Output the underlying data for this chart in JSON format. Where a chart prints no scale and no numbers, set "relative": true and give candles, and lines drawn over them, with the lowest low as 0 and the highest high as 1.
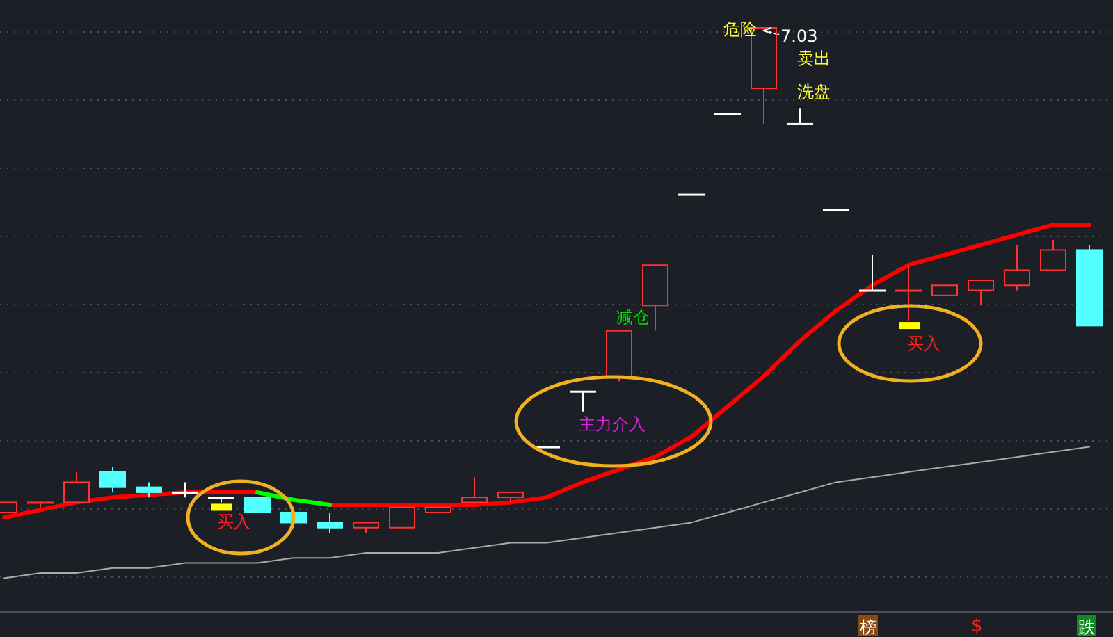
{
  "chart_data": {
    "type": "candlestick",
    "relative": true,
    "grid": true,
    "categories": [
      null,
      null,
      null,
      null,
      null,
      null,
      null,
      null,
      null,
      null,
      null,
      null,
      null,
      null,
      null,
      null,
      null,
      null,
      null,
      null,
      null,
      null,
      null,
      null,
      null,
      null,
      null,
      null,
      null,
      null,
      null
    ],
    "ohlc": [
      [
        0.04,
        0.06,
        0.04,
        0.06
      ],
      [
        0.06,
        0.06,
        0.05,
        0.06
      ],
      [
        0.06,
        0.12,
        0.06,
        0.1
      ],
      [
        0.12,
        0.13,
        0.08,
        0.09
      ],
      [
        0.09,
        0.1,
        0.07,
        0.08
      ],
      [
        0.08,
        0.1,
        0.07,
        0.08
      ],
      [
        0.07,
        0.07,
        0.06,
        0.07
      ],
      [
        0.07,
        0.07,
        0.04,
        0.04
      ],
      [
        0.04,
        0.05,
        0.01,
        0.02
      ],
      [
        0.02,
        0.04,
        0,
        0.01
      ],
      [
        0.01,
        0.02,
        0,
        0.02
      ],
      [
        0.01,
        0.05,
        0.01,
        0.05
      ],
      [
        0.04,
        0.05,
        0.04,
        0.05
      ],
      [
        0.06,
        0.11,
        0.06,
        0.07
      ],
      [
        0.07,
        0.08,
        0.06,
        0.08
      ],
      [
        0.17,
        0.17,
        0.17,
        0.17
      ],
      [
        0.28,
        0.28,
        0.24,
        0.28
      ],
      [
        0.31,
        0.4,
        0.3,
        0.4
      ],
      [
        0.45,
        0.53,
        0.4,
        0.53
      ],
      [
        0.67,
        0.67,
        0.67,
        0.67
      ],
      [
        0.83,
        0.83,
        0.83,
        0.83
      ],
      [
        0.88,
        1,
        0.81,
        1
      ],
      [
        0.81,
        0.84,
        0.81,
        0.81
      ],
      [
        0.64,
        0.64,
        0.64,
        0.64
      ],
      [
        0.48,
        0.55,
        0.48,
        0.48
      ],
      [
        0.48,
        0.53,
        0.42,
        0.48
      ],
      [
        0.47,
        0.49,
        0.47,
        0.49
      ],
      [
        0.48,
        0.5,
        0.45,
        0.5
      ],
      [
        0.49,
        0.57,
        0.48,
        0.52
      ],
      [
        0.52,
        0.58,
        0.52,
        0.56
      ],
      [
        0.56,
        0.57,
        0.41,
        0.41
      ]
    ],
    "colors": [
      "#ff3232",
      "#ff3232",
      "#ff3232",
      "#54ffff",
      "#54ffff",
      "#ffffff",
      "#ffffff",
      "#54ffff",
      "#54ffff",
      "#54ffff",
      "#ff3232",
      "#ff3232",
      "#ff3232",
      "#ff3232",
      "#ff3232",
      "#ffffff",
      "#ffffff",
      "#ff3232",
      "#ff3232",
      "#ffffff",
      "#ffffff",
      "#ff3232",
      "#ffffff",
      "#ffffff",
      "#ffffff",
      "#ff3232",
      "#ff3232",
      "#ff3232",
      "#ff3232",
      "#ff3232",
      "#54ffff"
    ],
    "series": [
      {
        "type": "line",
        "color": "#ff0000",
        "values": [
          0.03,
          0.045,
          0.06,
          0.07,
          0.075,
          0.08,
          0.08,
          0.08,
          null,
          0.055,
          0.055,
          0.055,
          0.055,
          0.055,
          0.06,
          0.07,
          0.1,
          0.125,
          0.15,
          0.19,
          0.25,
          0.31,
          0.38,
          0.44,
          0.49,
          0.53,
          0.55,
          0.57,
          0.59,
          0.61,
          0.61
        ]
      },
      {
        "type": "line",
        "color": "#00ff00",
        "values": [
          null,
          null,
          null,
          null,
          null,
          null,
          null,
          0.08,
          0.065,
          0.055,
          null,
          null,
          null,
          null,
          null,
          null,
          null,
          null,
          null,
          null,
          null,
          null,
          null,
          null,
          null,
          null,
          null,
          null,
          null,
          null,
          null
        ]
      },
      {
        "type": "line",
        "color": "#aaaaaa",
        "values": [
          -0.09,
          -0.08,
          -0.08,
          -0.07,
          -0.07,
          -0.06,
          -0.06,
          -0.06,
          -0.05,
          -0.05,
          -0.04,
          -0.04,
          -0.04,
          -0.03,
          -0.02,
          -0.02,
          -0.01,
          0,
          0.01,
          0.02,
          0.04,
          0.06,
          0.08,
          0.1,
          0.11,
          0.12,
          0.13,
          0.14,
          0.15,
          0.16,
          0.17
        ]
      }
    ],
    "annotations": [
      "危险",
      "7.03",
      "卖出",
      "洗盘",
      "减仓",
      "主力介入",
      "买入",
      "买入",
      "榜",
      "$",
      "跌"
    ]
  }
}
